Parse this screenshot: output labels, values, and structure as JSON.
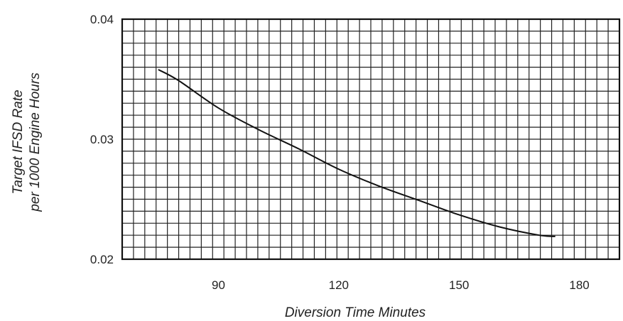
{
  "chart_data": {
    "type": "line",
    "title": "",
    "xlabel": "Diversion Time Minutes",
    "ylabel_line1": "Target IFSD Rate",
    "ylabel_line2": "per 1000 Engine Hours",
    "xlim": [
      66,
      190
    ],
    "ylim": [
      0.02,
      0.04
    ],
    "x_ticks": [
      90,
      120,
      150,
      180
    ],
    "x_tick_labels": [
      "90",
      "120",
      "150",
      "180"
    ],
    "y_ticks": [
      0.02,
      0.03,
      0.04
    ],
    "y_tick_labels": [
      "0.02",
      "0.03",
      "0.04"
    ],
    "grid": true,
    "legend": "none",
    "series": [
      {
        "x": [
          75,
          80,
          90,
          100,
          110,
          120,
          130,
          140,
          150,
          160,
          170,
          174
        ],
        "y": [
          0.0358,
          0.0349,
          0.0326,
          0.0308,
          0.0292,
          0.0275,
          0.0261,
          0.0249,
          0.0237,
          0.0227,
          0.022,
          0.0219
        ]
      }
    ]
  }
}
